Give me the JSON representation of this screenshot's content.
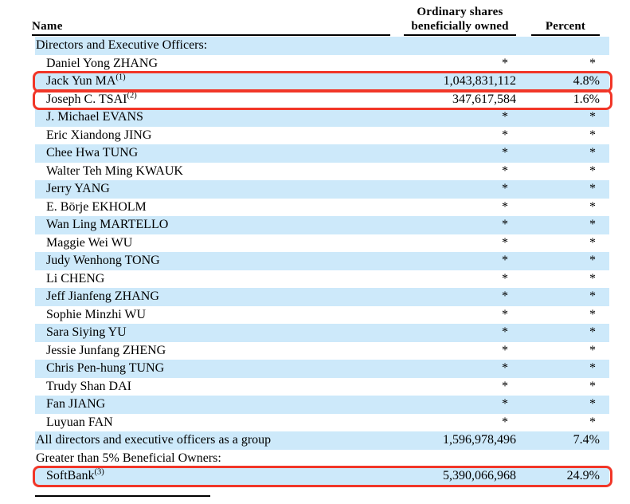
{
  "colors": {
    "row_shade": "#cde9fa",
    "annotation_red": "#f13628",
    "text": "#000000"
  },
  "header": {
    "name_label": "Name",
    "shares_label_line1": "Ordinary shares",
    "shares_label_line2": "beneficially owned",
    "percent_label": "Percent"
  },
  "table": {
    "rows": [
      {
        "name": "Directors and Executive Officers:",
        "sup": "",
        "shares": "",
        "percent": "",
        "shaded": true,
        "indent": false,
        "highlighted": false
      },
      {
        "name": "Daniel Yong ZHANG",
        "sup": "",
        "shares": "*",
        "percent": "*",
        "shaded": false,
        "indent": true,
        "highlighted": false
      },
      {
        "name": "Jack Yun MA",
        "sup": "(1)",
        "shares": "1,043,831,112",
        "percent": "4.8%",
        "shaded": true,
        "indent": true,
        "highlighted": true
      },
      {
        "name": "Joseph C. TSAI",
        "sup": "(2)",
        "shares": "347,617,584",
        "percent": "1.6%",
        "shaded": false,
        "indent": true,
        "highlighted": true
      },
      {
        "name": "J. Michael EVANS",
        "sup": "",
        "shares": "*",
        "percent": "*",
        "shaded": true,
        "indent": true,
        "highlighted": false
      },
      {
        "name": "Eric Xiandong JING",
        "sup": "",
        "shares": "*",
        "percent": "*",
        "shaded": false,
        "indent": true,
        "highlighted": false
      },
      {
        "name": "Chee Hwa TUNG",
        "sup": "",
        "shares": "*",
        "percent": "*",
        "shaded": true,
        "indent": true,
        "highlighted": false
      },
      {
        "name": "Walter Teh Ming KWAUK",
        "sup": "",
        "shares": "*",
        "percent": "*",
        "shaded": false,
        "indent": true,
        "highlighted": false
      },
      {
        "name": "Jerry YANG",
        "sup": "",
        "shares": "*",
        "percent": "*",
        "shaded": true,
        "indent": true,
        "highlighted": false
      },
      {
        "name": "E. Börje EKHOLM",
        "sup": "",
        "shares": "*",
        "percent": "*",
        "shaded": false,
        "indent": true,
        "highlighted": false
      },
      {
        "name": "Wan Ling MARTELLO",
        "sup": "",
        "shares": "*",
        "percent": "*",
        "shaded": true,
        "indent": true,
        "highlighted": false
      },
      {
        "name": "Maggie Wei WU",
        "sup": "",
        "shares": "*",
        "percent": "*",
        "shaded": false,
        "indent": true,
        "highlighted": false
      },
      {
        "name": "Judy Wenhong TONG",
        "sup": "",
        "shares": "*",
        "percent": "*",
        "shaded": true,
        "indent": true,
        "highlighted": false
      },
      {
        "name": "Li CHENG",
        "sup": "",
        "shares": "*",
        "percent": "*",
        "shaded": false,
        "indent": true,
        "highlighted": false
      },
      {
        "name": "Jeff Jianfeng ZHANG",
        "sup": "",
        "shares": "*",
        "percent": "*",
        "shaded": true,
        "indent": true,
        "highlighted": false
      },
      {
        "name": "Sophie Minzhi WU",
        "sup": "",
        "shares": "*",
        "percent": "*",
        "shaded": false,
        "indent": true,
        "highlighted": false
      },
      {
        "name": "Sara Siying YU",
        "sup": "",
        "shares": "*",
        "percent": "*",
        "shaded": true,
        "indent": true,
        "highlighted": false
      },
      {
        "name": "Jessie Junfang ZHENG",
        "sup": "",
        "shares": "*",
        "percent": "*",
        "shaded": false,
        "indent": true,
        "highlighted": false
      },
      {
        "name": "Chris Pen-hung TUNG",
        "sup": "",
        "shares": "*",
        "percent": "*",
        "shaded": true,
        "indent": true,
        "highlighted": false
      },
      {
        "name": "Trudy Shan DAI",
        "sup": "",
        "shares": "*",
        "percent": "*",
        "shaded": false,
        "indent": true,
        "highlighted": false
      },
      {
        "name": "Fan JIANG",
        "sup": "",
        "shares": "*",
        "percent": "*",
        "shaded": true,
        "indent": true,
        "highlighted": false
      },
      {
        "name": "Luyuan FAN",
        "sup": "",
        "shares": "*",
        "percent": "*",
        "shaded": false,
        "indent": true,
        "highlighted": false
      },
      {
        "name": "All directors and executive officers as a group",
        "sup": "",
        "shares": "1,596,978,496",
        "percent": "7.4%",
        "shaded": true,
        "indent": false,
        "highlighted": false
      },
      {
        "name": "Greater than 5% Beneficial Owners:",
        "sup": "",
        "shares": "",
        "percent": "",
        "shaded": false,
        "indent": false,
        "highlighted": false
      },
      {
        "name": "SoftBank",
        "sup": "(3)",
        "shares": "5,390,066,968",
        "percent": "24.9%",
        "shaded": true,
        "indent": true,
        "highlighted": true
      }
    ]
  }
}
